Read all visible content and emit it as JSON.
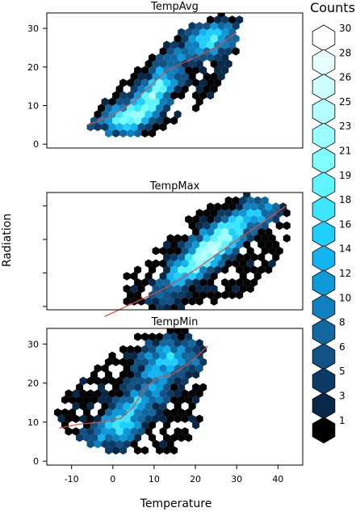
{
  "chart_data": {
    "type": "hexbin",
    "xlabel": "Temperature",
    "ylabel": "Radiation",
    "xlim": [
      -16,
      46
    ],
    "legend": {
      "title": "Counts",
      "levels": [
        30,
        28,
        26,
        25,
        23,
        21,
        19,
        18,
        16,
        14,
        12,
        10,
        8,
        6,
        5,
        3,
        1
      ],
      "colors": [
        "#ffffff",
        "#e6ffff",
        "#ccffff",
        "#b3ffff",
        "#99ffff",
        "#7ffcfc",
        "#5ef5ff",
        "#3de6ff",
        "#1fcfff",
        "#12b4f2",
        "#0e9ad8",
        "#0f80bd",
        "#10689f",
        "#0f5283",
        "#0c3c66",
        "#082849",
        "#000000"
      ]
    },
    "x_ticks": [
      "-10",
      "0",
      "10",
      "20",
      "30",
      "40"
    ],
    "panels": [
      {
        "title": "TempAvg",
        "ylim": [
          -1,
          34
        ],
        "y_ticks": [
          "0",
          "10",
          "20",
          "30"
        ],
        "clusters": [
          {
            "x": 10,
            "y": 13,
            "sx": 4.5,
            "sy": 6.5,
            "r": 0.8,
            "w": 0.55
          },
          {
            "x": 24,
            "y": 27,
            "sx": 4,
            "sy": 3,
            "r": 0.2,
            "w": 0.45
          },
          {
            "x": 2,
            "y": 7,
            "sx": 4,
            "sy": 3,
            "r": 0.4,
            "w": 0.4
          }
        ],
        "bounds": [
          [
            -6,
            4
          ],
          [
            0,
            2
          ],
          [
            10,
            2
          ],
          [
            24,
            12
          ],
          [
            30,
            24
          ],
          [
            31,
            33
          ],
          [
            26,
            34
          ],
          [
            16,
            29
          ],
          [
            4,
            18
          ],
          [
            -6,
            7
          ]
        ],
        "fit": [
          [
            -6,
            5
          ],
          [
            0,
            7.5
          ],
          [
            5,
            11
          ],
          [
            9,
            15
          ],
          [
            13,
            19
          ],
          [
            17,
            21
          ],
          [
            21,
            23
          ],
          [
            25,
            25
          ],
          [
            30,
            29
          ]
        ]
      },
      {
        "title": "TempMax",
        "ylim": [
          -1,
          34
        ],
        "y_ticks": [],
        "clusters": [
          {
            "x": 20,
            "y": 13,
            "sx": 6,
            "sy": 7,
            "r": 0.85,
            "w": 0.5
          },
          {
            "x": 35,
            "y": 28,
            "sx": 3.5,
            "sy": 3,
            "r": 0.3,
            "w": 0.3
          },
          {
            "x": 26,
            "y": 20,
            "sx": 5,
            "sy": 5,
            "r": 0.6,
            "w": 0.4
          }
        ],
        "bounds": [
          [
            3,
            1
          ],
          [
            13,
            -2
          ],
          [
            32,
            3
          ],
          [
            42,
            16
          ],
          [
            43,
            30
          ],
          [
            32,
            34
          ],
          [
            20,
            28
          ],
          [
            3,
            9
          ]
        ],
        "fit": [
          [
            -2,
            -3
          ],
          [
            5,
            1
          ],
          [
            12,
            5
          ],
          [
            20,
            11
          ],
          [
            28,
            18
          ],
          [
            35,
            24
          ],
          [
            42,
            30
          ]
        ]
      },
      {
        "title": "TempMin",
        "ylim": [
          -1,
          34
        ],
        "y_ticks": [
          "0",
          "10",
          "20",
          "30"
        ],
        "clusters": [
          {
            "x": 5,
            "y": 13,
            "sx": 5,
            "sy": 6,
            "r": 0.7,
            "w": 0.4
          },
          {
            "x": 14,
            "y": 26,
            "sx": 5,
            "sy": 3.5,
            "r": 0.2,
            "w": 0.4
          },
          {
            "x": -2,
            "y": 8,
            "sx": 4,
            "sy": 3,
            "r": 0.3,
            "w": 0.2
          }
        ],
        "bounds": [
          [
            -15,
            10
          ],
          [
            -5,
            4
          ],
          [
            3,
            1
          ],
          [
            16,
            2
          ],
          [
            22,
            12
          ],
          [
            22,
            30
          ],
          [
            17,
            34
          ],
          [
            5,
            32
          ],
          [
            -6,
            22
          ],
          [
            -14,
            15
          ]
        ],
        "fit": [
          [
            -13,
            8.5
          ],
          [
            -8,
            9.5
          ],
          [
            -3,
            10
          ],
          [
            2,
            11
          ],
          [
            5,
            14
          ],
          [
            8,
            19
          ],
          [
            11,
            21.5
          ],
          [
            14,
            22
          ],
          [
            17,
            24
          ],
          [
            20,
            26.5
          ],
          [
            23,
            29.5
          ]
        ]
      }
    ]
  }
}
